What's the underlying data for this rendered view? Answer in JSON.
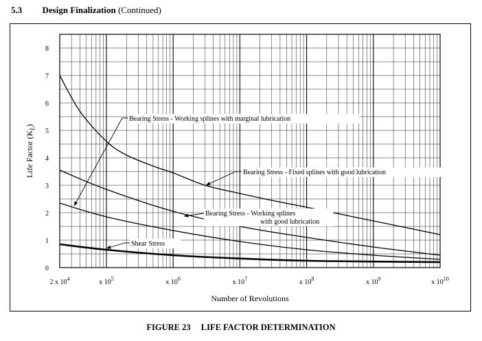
{
  "header": {
    "section": "5.3",
    "title": "Design Finalization",
    "continued": "(Continued)"
  },
  "caption": {
    "figure": "FIGURE 23",
    "text": "LIFE FACTOR DETERMINATION"
  },
  "chart_data": {
    "type": "line",
    "title": "",
    "xlabel": "Number of Revolutions",
    "ylabel": "Life Factor (K_L)",
    "ylabel_main": "Life Factor",
    "ylabel_symbol": "(K",
    "ylabel_sub": "L",
    "ylabel_close": ")",
    "x_scale": "log",
    "xlim": [
      20000,
      10000000000
    ],
    "ylim": [
      0,
      8.5
    ],
    "grid": true,
    "x_ticks": [
      {
        "value": 20000,
        "base": "2 x 10",
        "exp": "4"
      },
      {
        "value": 100000,
        "base": "x 10",
        "exp": "5"
      },
      {
        "value": 1000000,
        "base": "x 10",
        "exp": "6"
      },
      {
        "value": 10000000,
        "base": "x 10",
        "exp": "7"
      },
      {
        "value": 100000000,
        "base": "x 10",
        "exp": "8"
      },
      {
        "value": 1000000000,
        "base": "x 10",
        "exp": "9"
      },
      {
        "value": 10000000000,
        "base": "x 10",
        "exp": "10"
      }
    ],
    "y_ticks": [
      0,
      1,
      2,
      3,
      4,
      5,
      6,
      7,
      8
    ],
    "series": [
      {
        "name": "Bearing Stress - Working splines with marginal lubrication",
        "weight": "normal",
        "x": [
          20000,
          40000,
          100000,
          200000,
          500000,
          1000000,
          3000000,
          10000000,
          30000000,
          100000000,
          1000000000,
          10000000000
        ],
        "y": [
          7.0,
          5.7,
          4.6,
          4.1,
          3.7,
          3.45,
          3.0,
          2.7,
          2.45,
          2.2,
          1.7,
          1.2
        ]
      },
      {
        "name": "Bearing Stress - Fixed splines with good lubrication",
        "weight": "normal",
        "x": [
          20000,
          100000,
          1000000,
          10000000,
          100000000,
          1000000000,
          10000000000
        ],
        "y": [
          3.55,
          2.85,
          2.05,
          1.5,
          1.1,
          0.75,
          0.45
        ]
      },
      {
        "name": "Bearing Stress - Working splines with good lubrication",
        "label_line1": "Bearing Stress - Working splines",
        "label_line2": "with good lubrication",
        "weight": "normal",
        "x": [
          20000,
          100000,
          1000000,
          10000000,
          100000000,
          1000000000,
          10000000000
        ],
        "y": [
          2.35,
          1.85,
          1.35,
          0.95,
          0.65,
          0.45,
          0.3
        ]
      },
      {
        "name": "Shear Stress",
        "weight": "bold",
        "x": [
          20000,
          100000,
          1000000,
          10000000,
          100000000,
          1000000000,
          10000000000
        ],
        "y": [
          0.85,
          0.65,
          0.45,
          0.33,
          0.25,
          0.22,
          0.2
        ]
      }
    ]
  }
}
